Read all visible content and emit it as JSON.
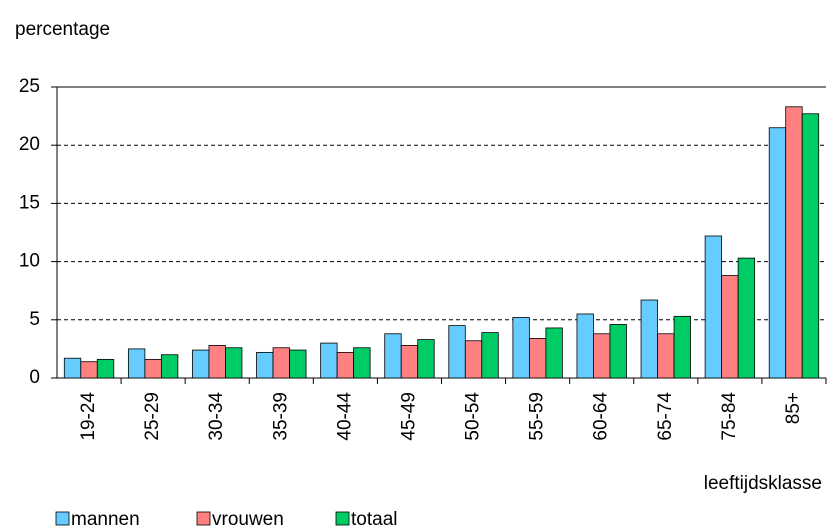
{
  "chart_data": {
    "type": "bar",
    "y_label": "percentage",
    "x_label": "leeftijdsklasse",
    "categories": [
      "19-24",
      "25-29",
      "30-34",
      "35-39",
      "40-44",
      "45-49",
      "50-54",
      "55-59",
      "60-64",
      "65-74",
      "75-84",
      "85+"
    ],
    "series": [
      {
        "name": "mannen",
        "color": "#66ccff",
        "values": [
          1.7,
          2.5,
          2.4,
          2.2,
          3.0,
          3.8,
          4.5,
          5.2,
          5.5,
          6.7,
          12.2,
          21.5
        ]
      },
      {
        "name": "vrouwen",
        "color": "#ff8080",
        "values": [
          1.4,
          1.6,
          2.8,
          2.6,
          2.2,
          2.8,
          3.2,
          3.4,
          3.8,
          3.8,
          8.8,
          23.3
        ]
      },
      {
        "name": "totaal",
        "color": "#00cc66",
        "values": [
          1.6,
          2.0,
          2.6,
          2.4,
          2.6,
          3.3,
          3.9,
          4.3,
          4.6,
          5.3,
          10.3,
          22.7
        ]
      }
    ],
    "ylim": [
      0,
      25
    ],
    "yticks": [
      0,
      5,
      10,
      15,
      20,
      25
    ],
    "grid": true
  }
}
